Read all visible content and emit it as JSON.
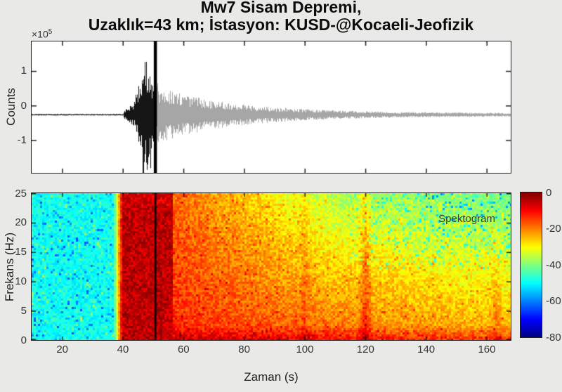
{
  "figure": {
    "title_line1": "Mw7 Sisam Depremi,",
    "title_line2": "Uzaklık=43 km; İstasyon: KUSD-@Kocaeli-Jeofizik",
    "background_color": "#e9e9e7",
    "axis_color": "#1e1e1e",
    "tick_label_color": "#333333"
  },
  "chart_data": [
    {
      "type": "line",
      "name": "seismogram-waveform",
      "ylabel": "Counts",
      "y_exponent_base": "×10",
      "y_exponent_power": "5",
      "xlim": [
        10,
        168
      ],
      "ylim": [
        -1.95,
        1.85
      ],
      "yticks": [
        1,
        0,
        -1
      ],
      "xticks": [
        20,
        40,
        60,
        80,
        100,
        120,
        140,
        160
      ],
      "units": "counts ×1e5",
      "baseline": -0.27,
      "pre_event_noise_amp": 0.022,
      "p_onset_s": 40.3,
      "s_burst_start_s": 44.2,
      "peak_time_s": 47.6,
      "peak_amp": 1.57,
      "max_excursion": [
        -1.9,
        1.5
      ],
      "pick_line_s": 50.8,
      "coda_start_amp": 0.8,
      "coda_decay_s": 26,
      "trace_color_before_pick": "#161616",
      "trace_color_after_pick": "#a6a6a6",
      "pick_line_color": "#000000"
    },
    {
      "type": "heatmap",
      "name": "spectrogram",
      "annotation": "Spektogram",
      "xlabel": "Zaman (s)",
      "ylabel": "Frekans (Hz)",
      "xlim": [
        10,
        168
      ],
      "ylim": [
        0,
        25
      ],
      "xticks": [
        20,
        40,
        60,
        80,
        100,
        120,
        140,
        160
      ],
      "yticks": [
        25,
        20,
        15,
        10,
        5,
        0
      ],
      "pick_line_s": 50.8,
      "colormap": "jet",
      "db_min": -80,
      "db_max": 0,
      "colorbar_ticks": [
        0,
        -20,
        -40,
        -60,
        -80
      ],
      "background_db": -49,
      "background_noise_db": 4,
      "onset_transition_s": 37,
      "strong_band": {
        "start_s": 40,
        "end_s": 56.5,
        "db": -5,
        "noise_db": 4.5
      },
      "post_band": {
        "base_db": -13,
        "time_decay_db_per_s": 0.09,
        "freq_rolloff_db_per_hz_min": 0.2,
        "freq_rolloff_db_per_hz_max": 0.75,
        "rolloff_ramp_s": 55,
        "low_freq_boost_db_per_hz": 3.2,
        "low_freq_boost_below_hz": 2.5
      },
      "streaks": [
        {
          "t": 100,
          "db": 4,
          "width_s": 2
        },
        {
          "t": 120,
          "db": 9,
          "width_s": 2.5
        },
        {
          "t": 163,
          "db": 6,
          "width_s": 3
        }
      ]
    }
  ]
}
